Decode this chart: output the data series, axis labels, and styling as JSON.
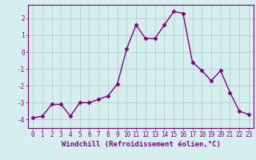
{
  "x": [
    0,
    1,
    2,
    3,
    4,
    5,
    6,
    7,
    8,
    9,
    10,
    11,
    12,
    13,
    14,
    15,
    16,
    17,
    18,
    19,
    20,
    21,
    22,
    23
  ],
  "y": [
    -3.9,
    -3.8,
    -3.1,
    -3.1,
    -3.8,
    -3.0,
    -3.0,
    -2.8,
    -2.6,
    -1.9,
    0.2,
    1.6,
    0.8,
    0.8,
    1.6,
    2.4,
    2.3,
    -0.6,
    -1.1,
    -1.7,
    -1.1,
    -2.4,
    -3.5,
    -3.7
  ],
  "line_color": "#800080",
  "marker": "D",
  "markersize": 2.5,
  "linewidth": 1.0,
  "xlabel": "Windchill (Refroidissement éolien,°C)",
  "xlim": [
    -0.5,
    23.5
  ],
  "ylim": [
    -4.5,
    2.8
  ],
  "yticks": [
    -4,
    -3,
    -2,
    -1,
    0,
    1,
    2
  ],
  "xticks": [
    0,
    1,
    2,
    3,
    4,
    5,
    6,
    7,
    8,
    9,
    10,
    11,
    12,
    13,
    14,
    15,
    16,
    17,
    18,
    19,
    20,
    21,
    22,
    23
  ],
  "bg_color": "#d6eeee",
  "grid_color": "#b0d0d0",
  "spine_color": "#800080",
  "tick_color": "#800080",
  "label_color": "#800080",
  "tick_fontsize": 5.5,
  "xlabel_fontsize": 6.5
}
